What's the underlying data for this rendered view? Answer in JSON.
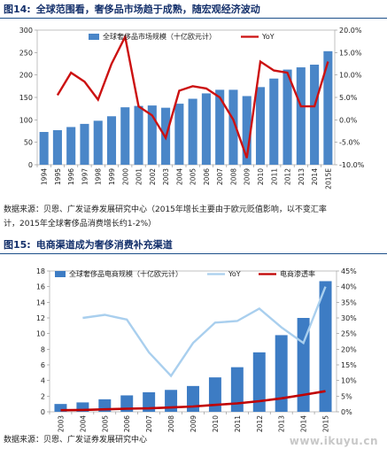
{
  "figure14": {
    "number": "图14:",
    "title": "全球范围看，奢侈品市场趋于成熟，随宏观经济波动",
    "source_line1": "数据来源：贝恩、广发证券发展研究中心（2015年增长主要由于欧元贬值影响，以不变汇率",
    "source_line2": "计，2015年全球奢侈品消费增长约1-2%）"
  },
  "figure15": {
    "number": "图15:",
    "title": "电商渠道成为奢侈消费补充渠道",
    "source": "数据来源：贝恩、广发证券发展研究中心"
  },
  "watermark": "www.ikuyu.cn",
  "chart_data": [
    {
      "type": "bar",
      "categories": [
        "1994",
        "1995",
        "1996",
        "1997",
        "1998",
        "1999",
        "2000",
        "2001",
        "2002",
        "2003",
        "2004",
        "2005",
        "2006",
        "2007",
        "2008",
        "2009",
        "2010",
        "2011",
        "2012",
        "2013",
        "2014",
        "2015E"
      ],
      "series": [
        {
          "name": "全球奢侈品市场规模（十亿欧元计）",
          "type": "bar",
          "axis": "left",
          "color": "#4a86c8",
          "values": [
            73,
            77,
            84,
            91,
            98,
            108,
            128,
            131,
            132,
            127,
            136,
            147,
            159,
            167,
            167,
            153,
            173,
            192,
            212,
            217,
            223,
            253
          ]
        },
        {
          "name": "YoY",
          "type": "line",
          "axis": "right",
          "color": "#cc1111",
          "values": [
            null,
            5.5,
            10.5,
            8.5,
            4.5,
            12.5,
            18.5,
            3,
            1,
            -4,
            6.5,
            7.5,
            7,
            5,
            0,
            -8.5,
            13,
            11,
            10.5,
            3,
            3,
            13
          ]
        }
      ],
      "ylim_left": [
        0,
        300
      ],
      "yticks_left": [
        0,
        50,
        100,
        150,
        200,
        250,
        300
      ],
      "ylim_right": [
        -10,
        20
      ],
      "yticks_right": [
        "-10.0%",
        "-5.0%",
        "0.0%",
        "5.0%",
        "10.0%",
        "15.0%",
        "20.0%"
      ],
      "legend": "top"
    },
    {
      "type": "bar",
      "categories": [
        "2003",
        "2004",
        "2005",
        "2006",
        "2007",
        "2008",
        "2009",
        "2010",
        "2011",
        "2012",
        "2013",
        "2014",
        "2015"
      ],
      "series": [
        {
          "name": "全球奢侈品电商规模（十亿欧元计）",
          "type": "bar",
          "axis": "left",
          "color": "#3d7cc4",
          "values": [
            1,
            1.2,
            1.6,
            2.1,
            2.5,
            2.8,
            3.3,
            4.4,
            5.7,
            7.6,
            9.8,
            12,
            16.7
          ]
        },
        {
          "name": "YoY",
          "type": "line",
          "axis": "right",
          "color": "#a9cfee",
          "values": [
            null,
            30,
            31,
            29.5,
            19,
            11.5,
            22,
            28.5,
            29,
            33,
            27,
            22,
            40
          ]
        },
        {
          "name": "电商渗透率",
          "type": "line",
          "axis": "right",
          "color": "#c00000",
          "values": [
            0.5,
            0.6,
            0.8,
            1,
            1.1,
            1.4,
            1.7,
            2.2,
            2.7,
            3.4,
            4.3,
            5.4,
            6.6
          ]
        }
      ],
      "ylim_left": [
        0,
        18
      ],
      "yticks_left": [
        0,
        2,
        4,
        6,
        8,
        10,
        12,
        14,
        16,
        18
      ],
      "ylim_right": [
        0,
        45
      ],
      "yticks_right": [
        "0%",
        "5%",
        "10%",
        "15%",
        "20%",
        "25%",
        "30%",
        "35%",
        "40%",
        "45%"
      ],
      "legend": "top"
    }
  ]
}
